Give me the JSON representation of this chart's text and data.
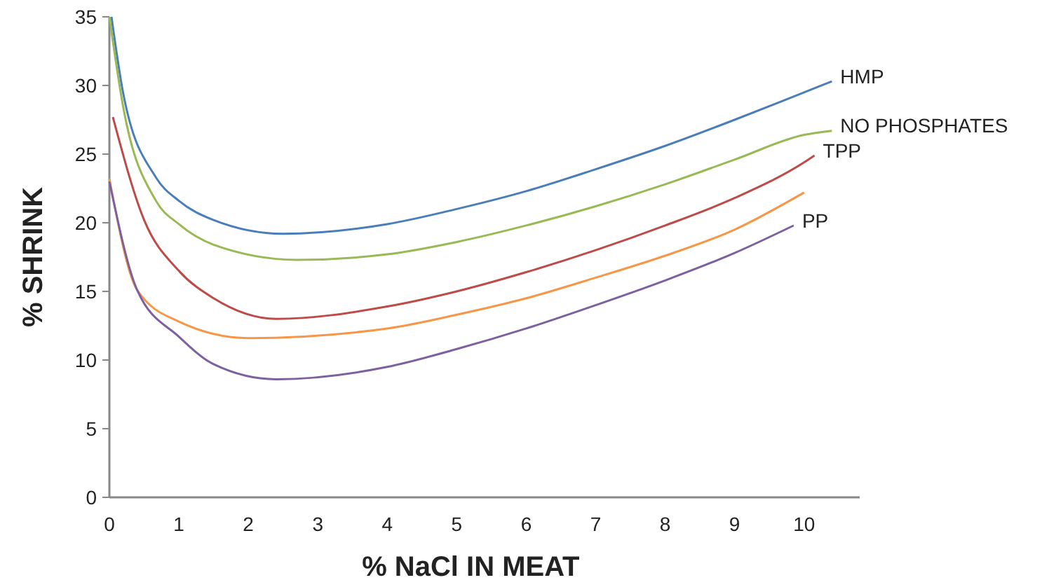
{
  "chart_data": {
    "type": "line",
    "xlabel": "% NaCl IN MEAT",
    "ylabel": "% SHRINK",
    "xlim": [
      0,
      10.8
    ],
    "ylim": [
      0,
      35
    ],
    "xticks": [
      0,
      1,
      2,
      3,
      4,
      5,
      6,
      7,
      8,
      9,
      10
    ],
    "yticks": [
      0,
      5,
      10,
      15,
      20,
      25,
      30,
      35
    ],
    "grid": false,
    "legend": false,
    "marker": "none",
    "line_style": "solid",
    "series": [
      {
        "name": "HMP",
        "color": "#4a7ebb",
        "x": [
          0.03,
          0.2,
          0.67,
          1,
          1.5,
          2.5,
          4,
          5,
          6,
          7,
          8,
          9,
          10,
          10.4
        ],
        "values": [
          35,
          29.4,
          23.3,
          21.6,
          20.2,
          19.2,
          19.9,
          21,
          22.3,
          23.9,
          25.6,
          27.5,
          29.5,
          30.3
        ]
      },
      {
        "name": "NO PHOSPHATES",
        "color": "#98b954",
        "x": [
          0,
          0.2,
          0.67,
          1,
          1.5,
          2.7,
          4,
          5,
          6,
          7,
          8,
          9,
          10,
          10.4
        ],
        "values": [
          35,
          28.4,
          21.6,
          19.9,
          18.4,
          17.3,
          17.7,
          18.6,
          19.8,
          21.2,
          22.8,
          24.6,
          26.4,
          26.7
        ]
      },
      {
        "name": "TPP",
        "color": "#be4b48",
        "x": [
          0.05,
          0.5,
          1,
          1.5,
          2.4,
          4,
          5,
          6,
          7,
          8,
          9,
          10,
          10.15
        ],
        "values": [
          27.7,
          20.2,
          16.5,
          14.5,
          13,
          13.9,
          15,
          16.4,
          18,
          19.8,
          21.8,
          24.4,
          24.9
        ]
      },
      {
        "color": "#f79646",
        "x": [
          0,
          0.4,
          1,
          2,
          4,
          5,
          6,
          7,
          8,
          9,
          10
        ],
        "values": [
          23.2,
          15.1,
          12.8,
          11.6,
          12.3,
          13.3,
          14.5,
          16,
          17.6,
          19.5,
          22.2
        ]
      },
      {
        "name": "PP",
        "color": "#7d60a0",
        "x": [
          0,
          0.4,
          1,
          1.5,
          2.4,
          4,
          5,
          6,
          7,
          8,
          9,
          9.85
        ],
        "values": [
          23,
          15.1,
          11.7,
          9.7,
          8.6,
          9.5,
          10.8,
          12.3,
          14,
          15.8,
          17.8,
          19.8
        ]
      }
    ]
  }
}
